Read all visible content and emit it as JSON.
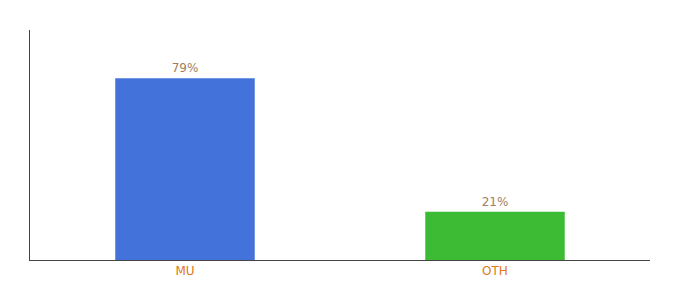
{
  "chart_data": {
    "type": "bar",
    "categories": [
      "MU",
      "OTH"
    ],
    "values": [
      79,
      21
    ],
    "value_labels": [
      "79%",
      "21%"
    ],
    "colors": [
      "#4472db",
      "#3dbb35"
    ],
    "ylim": [
      0,
      100
    ],
    "data_labels": true,
    "tick_labels": "x",
    "grid": false
  }
}
